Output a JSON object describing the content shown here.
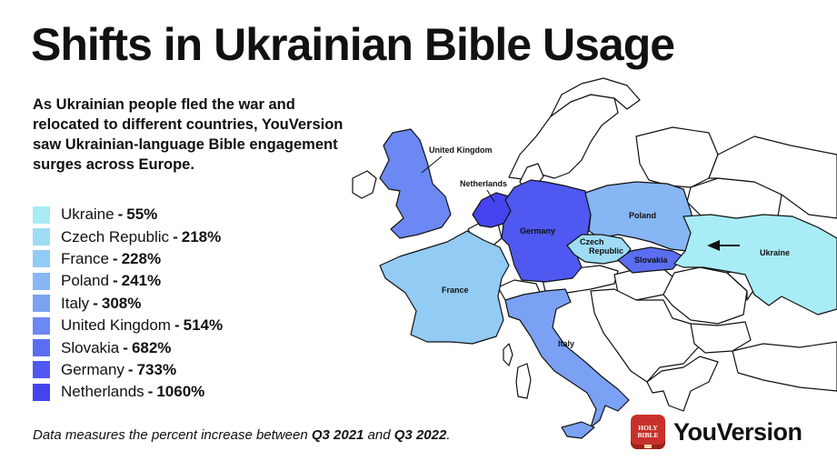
{
  "header": {
    "title": "Shifts in Ukrainian Bible Usage",
    "intro": "As Ukrainian people fled the war and relocated to different countries, YouVersion saw Ukrainian-language Bible engagement surges across Europe."
  },
  "legend": {
    "items": [
      {
        "name": "Ukraine",
        "value": "55%",
        "color": "#a8ecf6"
      },
      {
        "name": "Czech Republic",
        "value": "218%",
        "color": "#9edcf4"
      },
      {
        "name": "France",
        "value": "228%",
        "color": "#92cbf3"
      },
      {
        "name": "Poland",
        "value": "241%",
        "color": "#86b6f3"
      },
      {
        "name": "Italy",
        "value": "308%",
        "color": "#7aa1f4"
      },
      {
        "name": "United Kingdom",
        "value": "514%",
        "color": "#6b88f3"
      },
      {
        "name": "Slovakia",
        "value": "682%",
        "color": "#5b6ef2"
      },
      {
        "name": "Germany",
        "value": "733%",
        "color": "#4f58f0"
      },
      {
        "name": "Netherlands",
        "value": "1060%",
        "color": "#4444ee"
      }
    ],
    "separator": "-"
  },
  "map": {
    "labels": {
      "united_kingdom": "United Kingdom",
      "netherlands": "Netherlands",
      "germany": "Germany",
      "poland": "Poland",
      "czech_1": "Czech",
      "czech_2": "Republic",
      "slovakia": "Slovakia",
      "ukraine": "Ukraine",
      "france": "France",
      "italy": "Italy"
    },
    "arrow_direction": "west"
  },
  "footnote": {
    "prefix": "Data measures the percent increase between ",
    "q_start": "Q3 2021",
    "joiner": " and ",
    "q_end": "Q3 2022",
    "suffix": "."
  },
  "brand": {
    "icon_line1": "HOLY",
    "icon_line2": "BIBLE",
    "name": "YouVersion",
    "icon_color": "#c8312b"
  }
}
